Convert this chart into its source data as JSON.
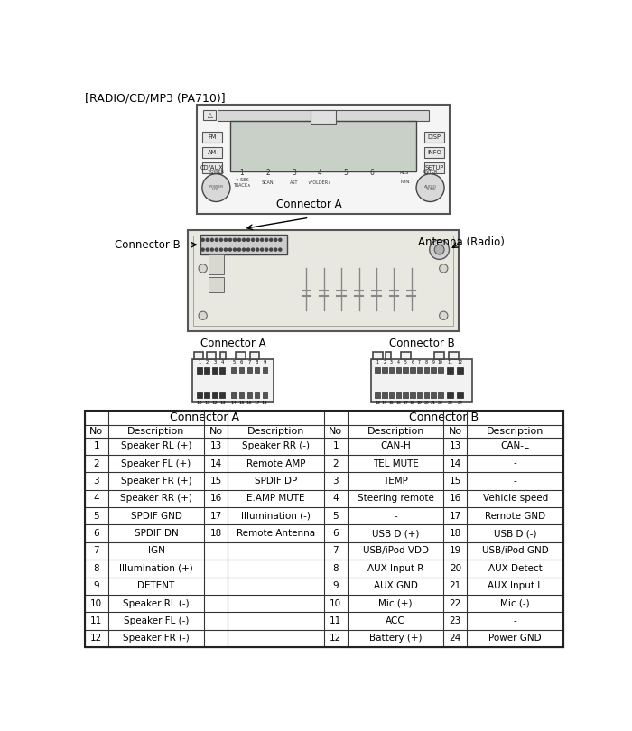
{
  "title": "[RADIO/CD/MP3 (PA710)]",
  "conn_a_rows": [
    [
      "1",
      "Speaker RL (+)",
      "13",
      "Speaker RR (-)"
    ],
    [
      "2",
      "Speaker FL (+)",
      "14",
      "Remote AMP"
    ],
    [
      "3",
      "Speaker FR (+)",
      "15",
      "SPDIF DP"
    ],
    [
      "4",
      "Speaker RR (+)",
      "16",
      "E.AMP MUTE"
    ],
    [
      "5",
      "SPDIF GND",
      "17",
      "Illumination (-)"
    ],
    [
      "6",
      "SPDIF DN",
      "18",
      "Remote Antenna"
    ],
    [
      "7",
      "IGN",
      "",
      ""
    ],
    [
      "8",
      "Illumination (+)",
      "",
      ""
    ],
    [
      "9",
      "DETENT",
      "",
      ""
    ],
    [
      "10",
      "Speaker RL (-)",
      "",
      ""
    ],
    [
      "11",
      "Speaker FL (-)",
      "",
      ""
    ],
    [
      "12",
      "Speaker FR (-)",
      "",
      ""
    ]
  ],
  "conn_b_rows": [
    [
      "1",
      "CAN-H",
      "13",
      "CAN-L"
    ],
    [
      "2",
      "TEL MUTE",
      "14",
      "-"
    ],
    [
      "3",
      "TEMP",
      "15",
      "-"
    ],
    [
      "4",
      "Steering remote",
      "16",
      "Vehicle speed"
    ],
    [
      "5",
      "-",
      "17",
      "Remote GND"
    ],
    [
      "6",
      "USB D (+)",
      "18",
      "USB D (-)"
    ],
    [
      "7",
      "USB/iPod VDD",
      "19",
      "USB/iPod GND"
    ],
    [
      "8",
      "AUX Input R",
      "20",
      "AUX Detect"
    ],
    [
      "9",
      "AUX GND",
      "21",
      "AUX Input L"
    ],
    [
      "10",
      "Mic (+)",
      "22",
      "Mic (-)"
    ],
    [
      "11",
      "ACC",
      "23",
      "-"
    ],
    [
      "12",
      "Battery (+)",
      "24",
      "Power GND"
    ]
  ],
  "bg_color": "#ffffff"
}
